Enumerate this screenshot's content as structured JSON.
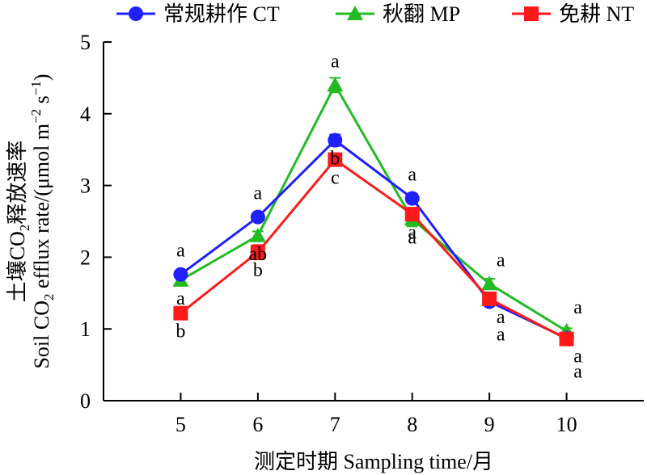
{
  "chart_data": {
    "type": "line",
    "x": [
      5,
      6,
      7,
      8,
      9,
      10
    ],
    "xlim": [
      4,
      11
    ],
    "ylim": [
      0,
      5
    ],
    "yticks": [
      0,
      1,
      2,
      3,
      4,
      5
    ],
    "xlabel": "测定时期 Sampling time/月",
    "ylabel_cn_prefix": "土壤CO",
    "ylabel_cn_sub": "2",
    "ylabel_cn_suffix": "释放速率",
    "ylabel_en_prefix": "Soil CO",
    "ylabel_en_sub": "2",
    "ylabel_en_mid": " efflux rate/(μmol m",
    "ylabel_en_sup1": "−2",
    "ylabel_en_mid2": " s",
    "ylabel_en_sup2": "−1",
    "ylabel_en_suffix": ")",
    "legend_position": "top",
    "series": [
      {
        "name": "常规耕作 CT",
        "color": "#1f1fff",
        "marker": "circle",
        "values": [
          1.76,
          2.56,
          3.63,
          2.82,
          1.38,
          0.87
        ],
        "errors": [
          0.05,
          0.05,
          0.08,
          0.06,
          0.05,
          0.04
        ],
        "labels": [
          "a",
          "a",
          "b",
          "a",
          "a",
          "a"
        ]
      },
      {
        "name": "秋翻 MP",
        "color": "#22bb22",
        "marker": "triangle",
        "values": [
          1.68,
          2.3,
          4.4,
          2.53,
          1.63,
          0.97
        ],
        "errors": [
          0.05,
          0.06,
          0.1,
          0.1,
          0.07,
          0.04
        ],
        "labels": [
          "a",
          "ab",
          "a",
          "a",
          "a",
          "a"
        ]
      },
      {
        "name": "免耕 NT",
        "color": "#ff1a1a",
        "marker": "square",
        "values": [
          1.22,
          2.07,
          3.36,
          2.6,
          1.42,
          0.86
        ],
        "errors": [
          0.04,
          0.1,
          0.06,
          0.06,
          0.05,
          0.04
        ],
        "labels": [
          "b",
          "b",
          "c",
          "a",
          "a",
          "a"
        ]
      }
    ]
  }
}
